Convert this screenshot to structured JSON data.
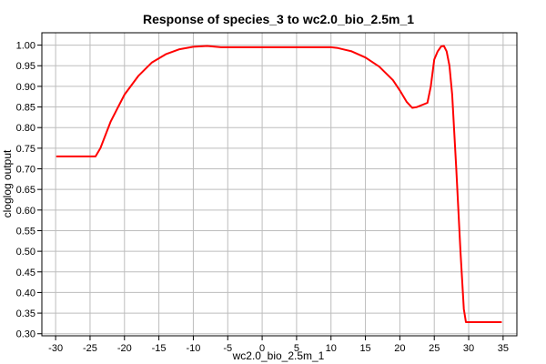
{
  "chart_data": {
    "type": "line",
    "title": "Response of species_3 to wc2.0_bio_2.5m_1",
    "xlabel": "wc2.0_bio_2.5m_1",
    "ylabel": "cloglog output",
    "xlim": [
      -32,
      37
    ],
    "ylim": [
      0.295,
      1.03
    ],
    "x_ticks": [
      -30,
      -25,
      -20,
      -15,
      -10,
      -5,
      0,
      5,
      10,
      15,
      20,
      25,
      30,
      35
    ],
    "y_ticks": [
      0.3,
      0.35,
      0.4,
      0.45,
      0.5,
      0.55,
      0.6,
      0.65,
      0.7,
      0.75,
      0.8,
      0.85,
      0.9,
      0.95,
      1.0
    ],
    "grid": true,
    "series": [
      {
        "color": "#ff0000",
        "x": [
          -29.8,
          -24.2,
          -23.5,
          -22,
          -20,
          -18,
          -16,
          -14,
          -12,
          -10,
          -8,
          -6,
          0,
          5,
          10,
          11,
          13,
          15,
          17,
          19,
          20,
          21,
          21.8,
          22.5,
          24,
          24.5,
          25,
          25.5,
          26,
          26.4,
          26.8,
          27.2,
          27.6,
          28.2,
          28.8,
          29.3,
          29.6,
          30,
          34.7
        ],
        "values": [
          0.73,
          0.73,
          0.75,
          0.815,
          0.88,
          0.925,
          0.958,
          0.978,
          0.99,
          0.996,
          0.998,
          0.995,
          0.995,
          0.995,
          0.995,
          0.993,
          0.985,
          0.97,
          0.948,
          0.915,
          0.89,
          0.862,
          0.848,
          0.85,
          0.86,
          0.9,
          0.965,
          0.985,
          0.997,
          0.998,
          0.985,
          0.95,
          0.88,
          0.7,
          0.5,
          0.36,
          0.328,
          0.328,
          0.328
        ]
      }
    ]
  }
}
